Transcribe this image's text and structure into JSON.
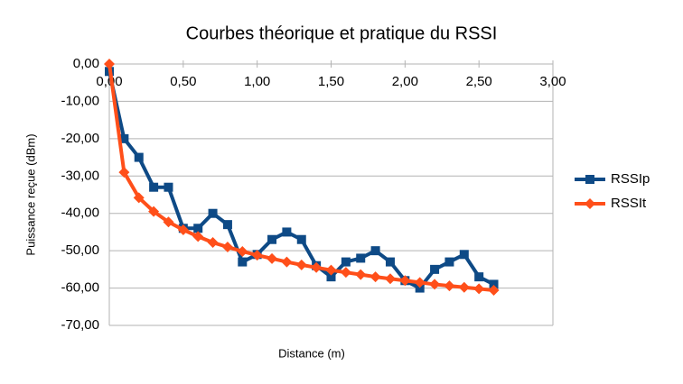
{
  "chart_data": {
    "type": "line",
    "title": "Courbes théorique et pratique du RSSI",
    "x_label": "Distance (m)",
    "y_label": "Puissance reçue (dBm)",
    "x": [
      0,
      0.1,
      0.2,
      0.3,
      0.4,
      0.5,
      0.6,
      0.7,
      0.8,
      0.9,
      1.0,
      1.1,
      1.2,
      1.3,
      1.4,
      1.5,
      1.6,
      1.7,
      1.8,
      1.9,
      2.0,
      2.1,
      2.2,
      2.3,
      2.4,
      2.5,
      2.6
    ],
    "series": [
      {
        "name": "RSSIp",
        "color": "#0e4a86",
        "marker": "square",
        "values": [
          -2,
          -20,
          -25,
          -33,
          -33,
          -44,
          -44,
          -40,
          -43,
          -53,
          -51,
          -47,
          -45,
          -47,
          -54,
          -57,
          -53,
          -52,
          -50,
          -53,
          -58,
          -60,
          -55,
          -53,
          -51,
          -57,
          -59
        ]
      },
      {
        "name": "RSSIt",
        "color": "#ff4f1a",
        "marker": "diamond",
        "values": [
          0,
          -29,
          -35.8,
          -39.5,
          -42.3,
          -44.4,
          -46.2,
          -47.8,
          -49,
          -50.2,
          -51.2,
          -52.1,
          -53,
          -53.8,
          -54.5,
          -55.2,
          -55.8,
          -56.4,
          -57,
          -57.5,
          -58,
          -58.5,
          -59,
          -59.4,
          -59.8,
          -60.2,
          -60.6
        ]
      }
    ],
    "xlim": [
      0,
      3
    ],
    "xticks": [
      {
        "value": 0,
        "label": "0,00"
      },
      {
        "value": 0.5,
        "label": "0,50"
      },
      {
        "value": 1,
        "label": "1,00"
      },
      {
        "value": 1.5,
        "label": "1,50"
      },
      {
        "value": 2,
        "label": "2,00"
      },
      {
        "value": 2.5,
        "label": "2,50"
      },
      {
        "value": 3,
        "label": "3,00"
      }
    ],
    "ylim": [
      -70,
      0
    ],
    "yticks": [
      {
        "value": 0,
        "label": "0,00"
      },
      {
        "value": -10,
        "label": "-10,00"
      },
      {
        "value": -20,
        "label": "-20,00"
      },
      {
        "value": -30,
        "label": "-30,00"
      },
      {
        "value": -40,
        "label": "-40,00"
      },
      {
        "value": -50,
        "label": "-50,00"
      },
      {
        "value": -60,
        "label": "-60,00"
      },
      {
        "value": -70,
        "label": "-70,00"
      }
    ],
    "grid": true,
    "legend": "right"
  }
}
